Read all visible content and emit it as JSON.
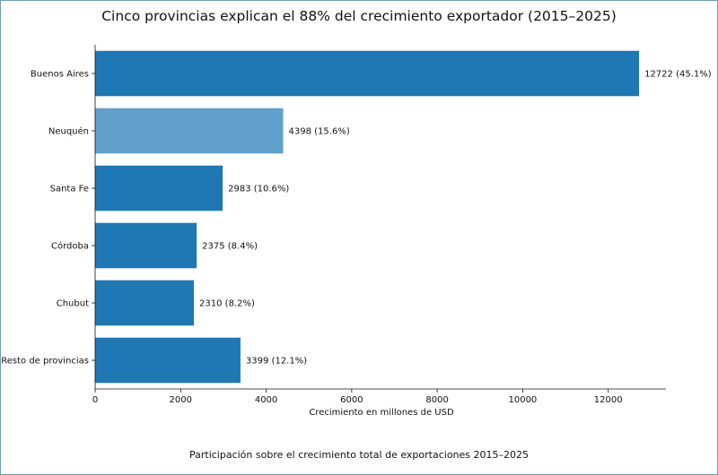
{
  "chart_data": {
    "type": "bar",
    "orientation": "horizontal",
    "title": "Cinco provincias explican el 88% del crecimiento exportador (2015–2025)",
    "xlabel": "Crecimiento en millones de USD",
    "ylabel": "",
    "caption": "Participación sobre el crecimiento total de exportaciones 2015–2025",
    "categories": [
      "Buenos Aires",
      "Neuquén",
      "Santa Fe",
      "Córdoba",
      "Chubut",
      "Resto de provincias"
    ],
    "values": [
      12722,
      4398,
      2983,
      2375,
      2310,
      3399
    ],
    "shares": [
      "45.1%",
      "15.6%",
      "10.6%",
      "8.4%",
      "8.2%",
      "12.1%"
    ],
    "xlim": [
      0,
      13350
    ],
    "xticks": [
      0,
      2000,
      4000,
      6000,
      8000,
      10000,
      12000
    ],
    "colors": {
      "default": "#1f77b4",
      "highlight": "#629fca"
    },
    "highlighted_category": "Neuquén",
    "grid": false,
    "legend": "none"
  }
}
